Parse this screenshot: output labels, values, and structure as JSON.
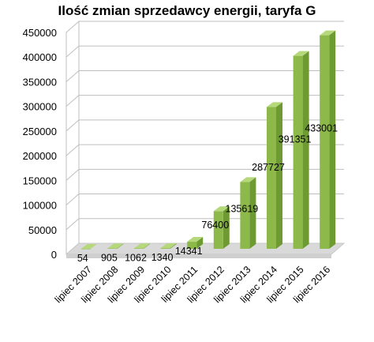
{
  "chart_data": {
    "type": "bar",
    "title": "Ilość zmian sprzedawcy energii, taryfa G",
    "xlabel": "",
    "ylabel": "",
    "categories": [
      "lipiec 2007",
      "lipiec 2008",
      "lipiec 2009",
      "lipiec 2010",
      "lipiec 2011",
      "lipiec 2012",
      "lipiec 2013",
      "lipiec 2014",
      "lipiec 2015",
      "lipiec 2016"
    ],
    "series": [
      {
        "values": [
          54,
          905,
          1062,
          1340,
          14341,
          76400,
          135619,
          287727,
          391351,
          433001
        ],
        "data_labels": [
          "54",
          "905",
          "1062",
          "1340",
          "14341",
          "76400",
          "135619",
          "287727",
          "391351",
          "433001"
        ]
      }
    ],
    "yticks": [
      "0",
      "50000",
      "100000",
      "150000",
      "200000",
      "250000",
      "300000",
      "350000",
      "400000",
      "450000"
    ],
    "ylim": [
      0,
      450000
    ],
    "grid": true,
    "legend": "none",
    "colors": {
      "bar_front": "#8db84a",
      "bar_side": "#6e9a32",
      "bar_top": "#b4d87a",
      "grid": "#bfbfbf",
      "floor": "#d9d9d9"
    }
  }
}
